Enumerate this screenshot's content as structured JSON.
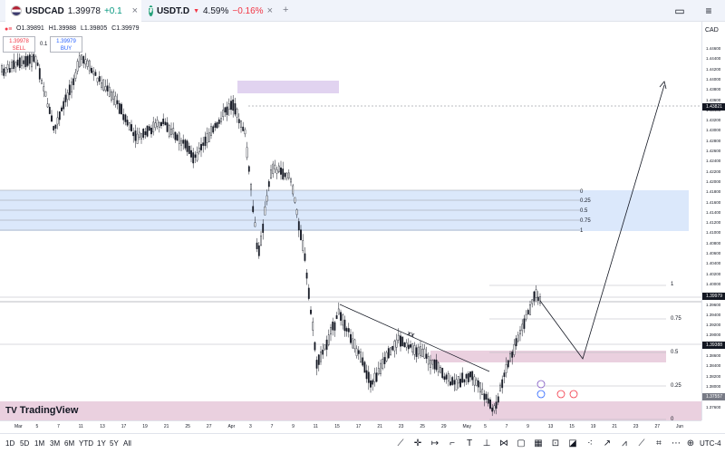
{
  "tabs": [
    {
      "symbol": "USDCAD",
      "price": "1.39978",
      "change": "+0.1",
      "close": "×"
    },
    {
      "symbol": "USDT.D",
      "price": "4.59%",
      "change": "−0.16%",
      "close": "×"
    }
  ],
  "tab_add": "+",
  "ohlc": {
    "o": "O1.39891",
    "h": "H1.39988",
    "l": "L1.39805",
    "c": "C1.39979"
  },
  "sell": {
    "price": "1.39978",
    "label": "SELL"
  },
  "buy": {
    "price": "1.39979",
    "label": "BUY"
  },
  "spread": "0.1",
  "currency": "CAD",
  "price_ticks": [
    "1.44600",
    "1.44400",
    "1.44200",
    "1.44000",
    "1.43800",
    "1.43600",
    "1.43400",
    "1.43200",
    "1.43000",
    "1.42800",
    "1.42600",
    "1.42400",
    "1.42200",
    "1.42000",
    "1.41800",
    "1.41600",
    "1.41400",
    "1.41200",
    "1.41000",
    "1.40800",
    "1.40600",
    "1.40400",
    "1.40200",
    "1.40000",
    "1.39800",
    "1.39600",
    "1.39400",
    "1.39200",
    "1.39000",
    "1.38800",
    "1.38600",
    "1.38400",
    "1.38200",
    "1.38000",
    "1.37800",
    "1.37600"
  ],
  "price_tags": [
    {
      "text": "1.43821",
      "color": "#131722"
    },
    {
      "text": "1.39979",
      "color": "#131722"
    },
    {
      "text": "1.39388",
      "color": "#131722"
    },
    {
      "text": "1.37557",
      "color": "#787b86"
    }
  ],
  "time_labels": [
    "Mar",
    "5",
    "7",
    "11",
    "13",
    "17",
    "19",
    "21",
    "25",
    "27",
    "Apr",
    "3",
    "7",
    "9",
    "11",
    "15",
    "17",
    "21",
    "23",
    "25",
    "29",
    "May",
    "5",
    "7",
    "9",
    "13",
    "15",
    "19",
    "21",
    "23",
    "27",
    "Jun"
  ],
  "fib_upper": [
    "0",
    "0.25",
    "0.5",
    "0.75",
    "1"
  ],
  "fib_lower": [
    "1",
    "0.75",
    "0.5",
    "0.25",
    "0"
  ],
  "annotation": "XX",
  "timeframes": [
    "1D",
    "5D",
    "1M",
    "3M",
    "6M",
    "YTD",
    "1Y",
    "5Y",
    "All"
  ],
  "timezone": "UTC-4",
  "logo_text": "TradingView",
  "colors": {
    "up": "#089981",
    "down": "#f23645",
    "zone_purple": "#e1d3f0",
    "zone_blue": "#dbe8fb",
    "zone_pink": "#ead0df"
  }
}
